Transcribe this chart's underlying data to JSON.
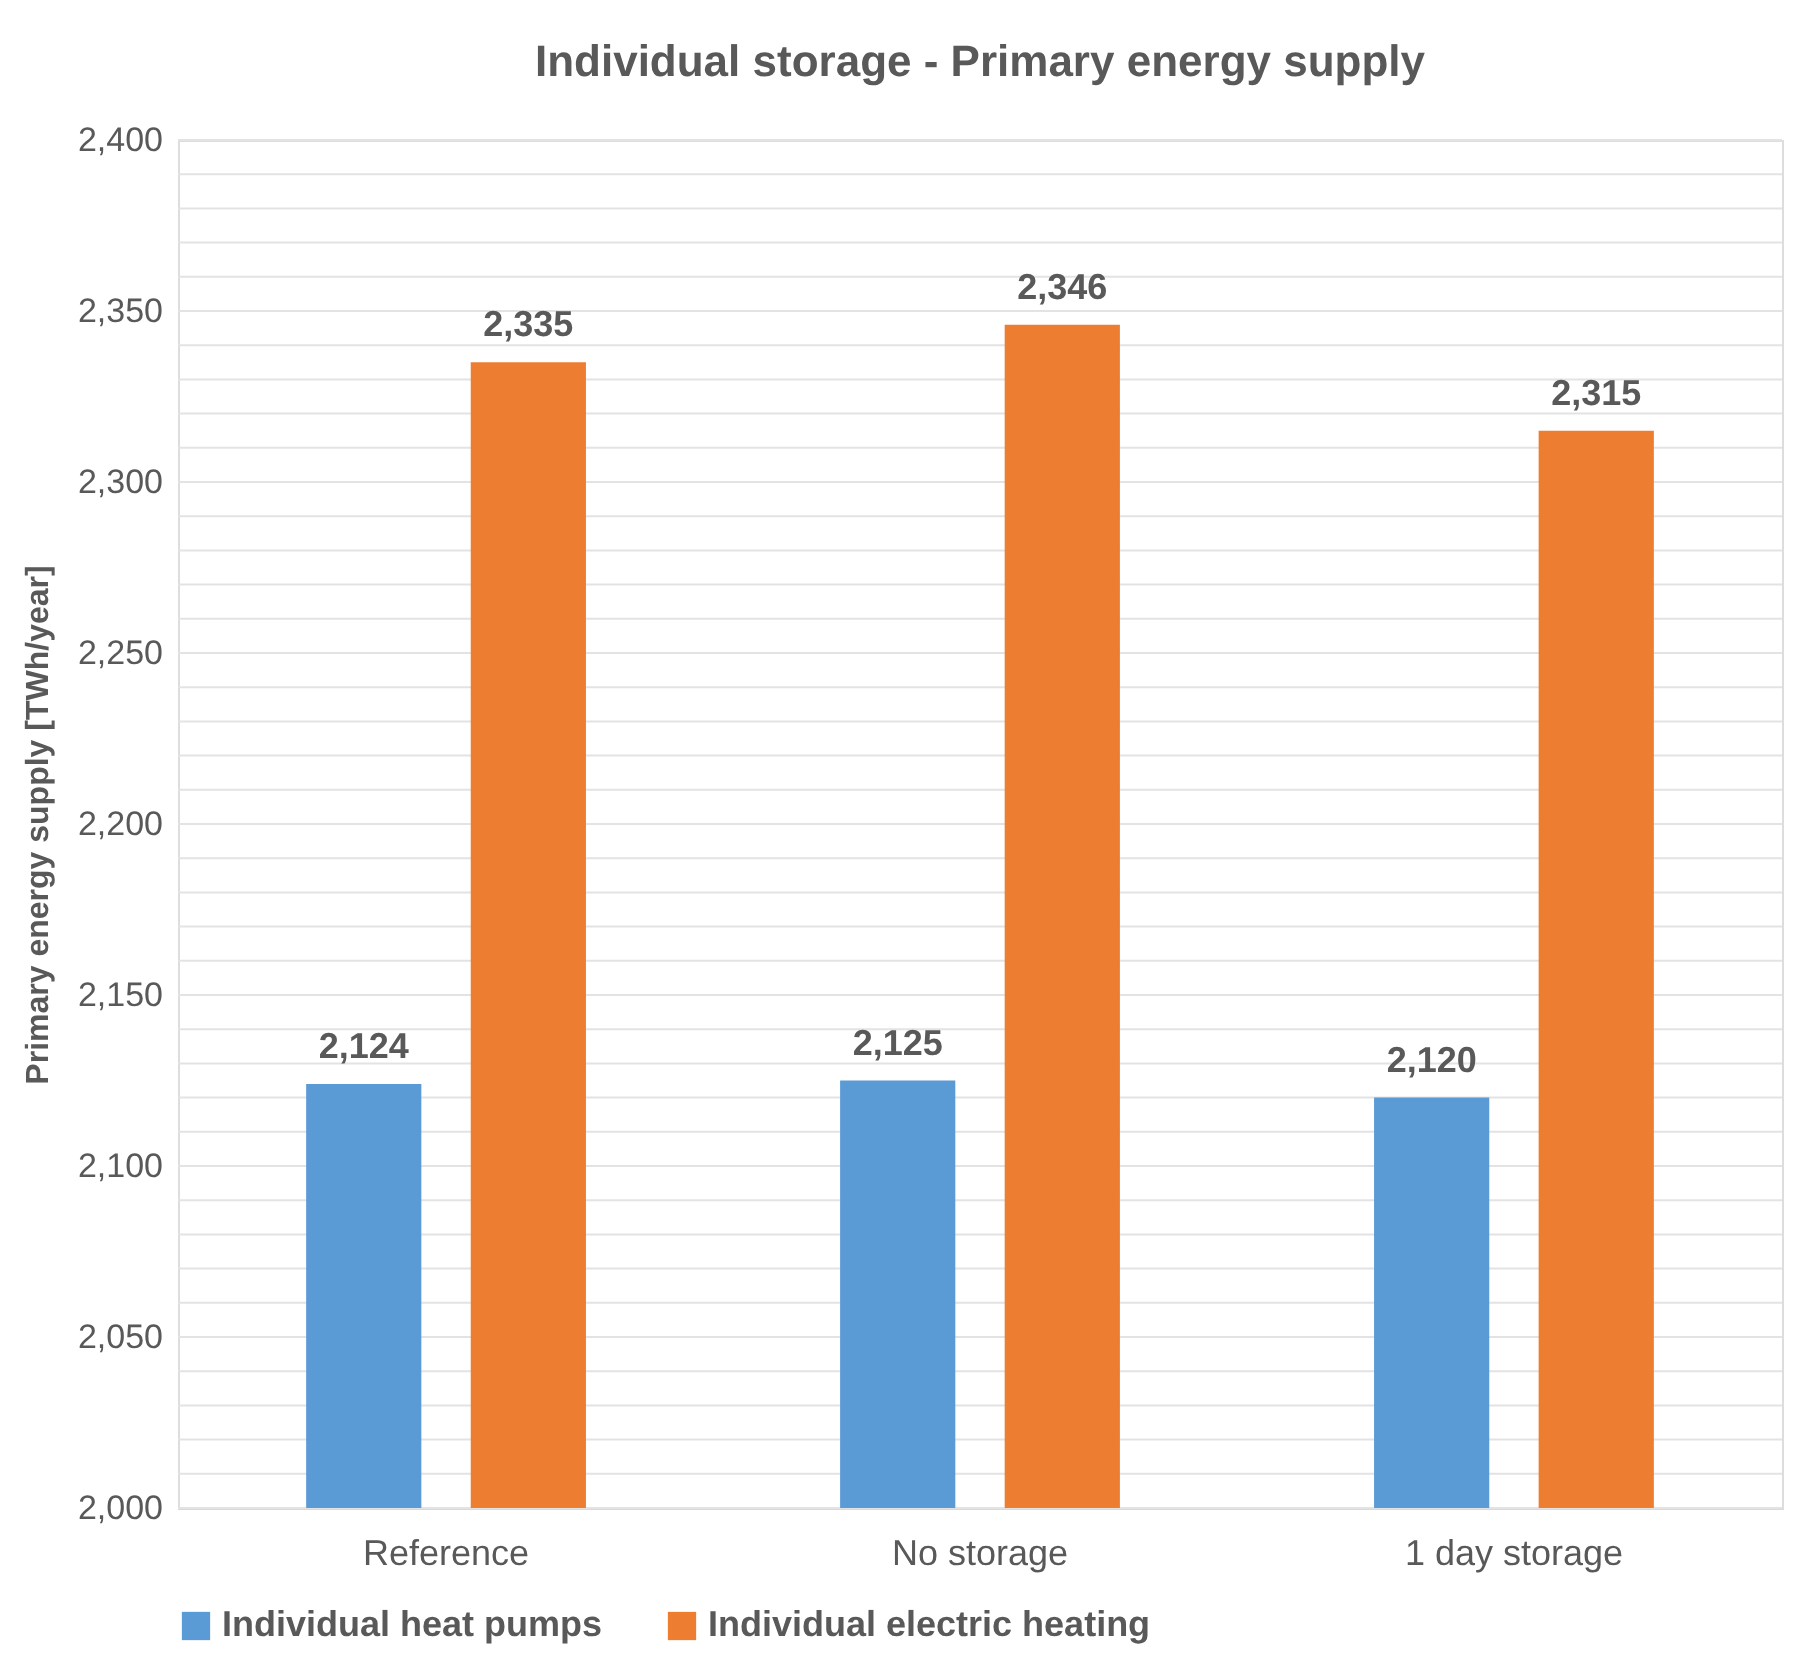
{
  "chart_data": {
    "type": "bar",
    "title": "Individual storage - Primary energy supply",
    "ylabel": "Primary energy supply [TWh/year]",
    "categories": [
      "Reference",
      "No storage",
      "1 day storage"
    ],
    "series": [
      {
        "name": "Individual heat pumps",
        "color": "#5b9bd5",
        "values": [
          2124,
          2125,
          2120
        ],
        "value_labels": [
          "2,124",
          "2,125",
          "2,120"
        ]
      },
      {
        "name": "Individual electric heating",
        "color": "#ed7d31",
        "values": [
          2335,
          2346,
          2315
        ],
        "value_labels": [
          "2,335",
          "2,346",
          "2,315"
        ]
      }
    ],
    "ylim": [
      2000,
      2400
    ],
    "yticks": [
      {
        "value": 2000,
        "label": "2,000"
      },
      {
        "value": 2010,
        "label": null
      },
      {
        "value": 2020,
        "label": null
      },
      {
        "value": 2030,
        "label": null
      },
      {
        "value": 2040,
        "label": null
      },
      {
        "value": 2050,
        "label": "2,050"
      },
      {
        "value": 2060,
        "label": null
      },
      {
        "value": 2070,
        "label": null
      },
      {
        "value": 2080,
        "label": null
      },
      {
        "value": 2090,
        "label": null
      },
      {
        "value": 2100,
        "label": "2,100"
      },
      {
        "value": 2110,
        "label": null
      },
      {
        "value": 2120,
        "label": null
      },
      {
        "value": 2130,
        "label": null
      },
      {
        "value": 2140,
        "label": null
      },
      {
        "value": 2150,
        "label": "2,150"
      },
      {
        "value": 2160,
        "label": null
      },
      {
        "value": 2170,
        "label": null
      },
      {
        "value": 2180,
        "label": null
      },
      {
        "value": 2190,
        "label": null
      },
      {
        "value": 2200,
        "label": "2,200"
      },
      {
        "value": 2210,
        "label": null
      },
      {
        "value": 2220,
        "label": null
      },
      {
        "value": 2230,
        "label": null
      },
      {
        "value": 2240,
        "label": null
      },
      {
        "value": 2250,
        "label": "2,250"
      },
      {
        "value": 2260,
        "label": null
      },
      {
        "value": 2270,
        "label": null
      },
      {
        "value": 2280,
        "label": null
      },
      {
        "value": 2290,
        "label": null
      },
      {
        "value": 2300,
        "label": "2,300"
      },
      {
        "value": 2310,
        "label": null
      },
      {
        "value": 2320,
        "label": null
      },
      {
        "value": 2330,
        "label": null
      },
      {
        "value": 2340,
        "label": null
      },
      {
        "value": 2350,
        "label": "2,350"
      },
      {
        "value": 2360,
        "label": null
      },
      {
        "value": 2370,
        "label": null
      },
      {
        "value": 2380,
        "label": null
      },
      {
        "value": 2390,
        "label": null
      },
      {
        "value": 2400,
        "label": "2,400"
      }
    ],
    "grid": "y",
    "legend": "bottom"
  }
}
